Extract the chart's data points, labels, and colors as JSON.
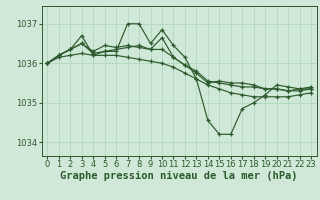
{
  "background_color": "#cfe8d8",
  "grid_color": "#b0d8c0",
  "line_color": "#2d5a2d",
  "xlabel": "Graphe pression niveau de la mer (hPa)",
  "xlabel_fontsize": 7.5,
  "tick_fontsize": 6.0,
  "ylim": [
    1033.65,
    1037.45
  ],
  "xlim": [
    -0.5,
    23.5
  ],
  "yticks": [
    1034,
    1035,
    1036,
    1037
  ],
  "xticks": [
    0,
    1,
    2,
    3,
    4,
    5,
    6,
    7,
    8,
    9,
    10,
    11,
    12,
    13,
    14,
    15,
    16,
    17,
    18,
    19,
    20,
    21,
    22,
    23
  ],
  "series": [
    [
      1036.0,
      1036.2,
      1036.35,
      1036.7,
      1036.2,
      1036.3,
      1036.3,
      1037.0,
      1037.0,
      1036.5,
      1036.85,
      1036.45,
      1036.15,
      1035.6,
      1034.55,
      1034.2,
      1034.2,
      1034.85,
      1035.0,
      1035.2,
      1035.45,
      1035.4,
      1035.35,
      1035.35
    ],
    [
      1036.0,
      1036.2,
      1036.35,
      1036.5,
      1036.25,
      1036.3,
      1036.35,
      1036.4,
      1036.45,
      1036.35,
      1036.65,
      1036.15,
      1035.95,
      1035.75,
      1035.5,
      1035.55,
      1035.5,
      1035.5,
      1035.45,
      1035.35,
      1035.35,
      1035.3,
      1035.3,
      1035.35
    ],
    [
      1036.0,
      1036.2,
      1036.35,
      1036.5,
      1036.3,
      1036.45,
      1036.4,
      1036.45,
      1036.4,
      1036.35,
      1036.35,
      1036.15,
      1035.95,
      1035.8,
      1035.55,
      1035.5,
      1035.45,
      1035.4,
      1035.4,
      1035.35,
      1035.35,
      1035.3,
      1035.35,
      1035.4
    ],
    [
      1036.0,
      1036.15,
      1036.2,
      1036.25,
      1036.2,
      1036.2,
      1036.2,
      1036.15,
      1036.1,
      1036.05,
      1036.0,
      1035.9,
      1035.75,
      1035.6,
      1035.45,
      1035.35,
      1035.25,
      1035.2,
      1035.15,
      1035.15,
      1035.15,
      1035.15,
      1035.2,
      1035.25
    ]
  ]
}
